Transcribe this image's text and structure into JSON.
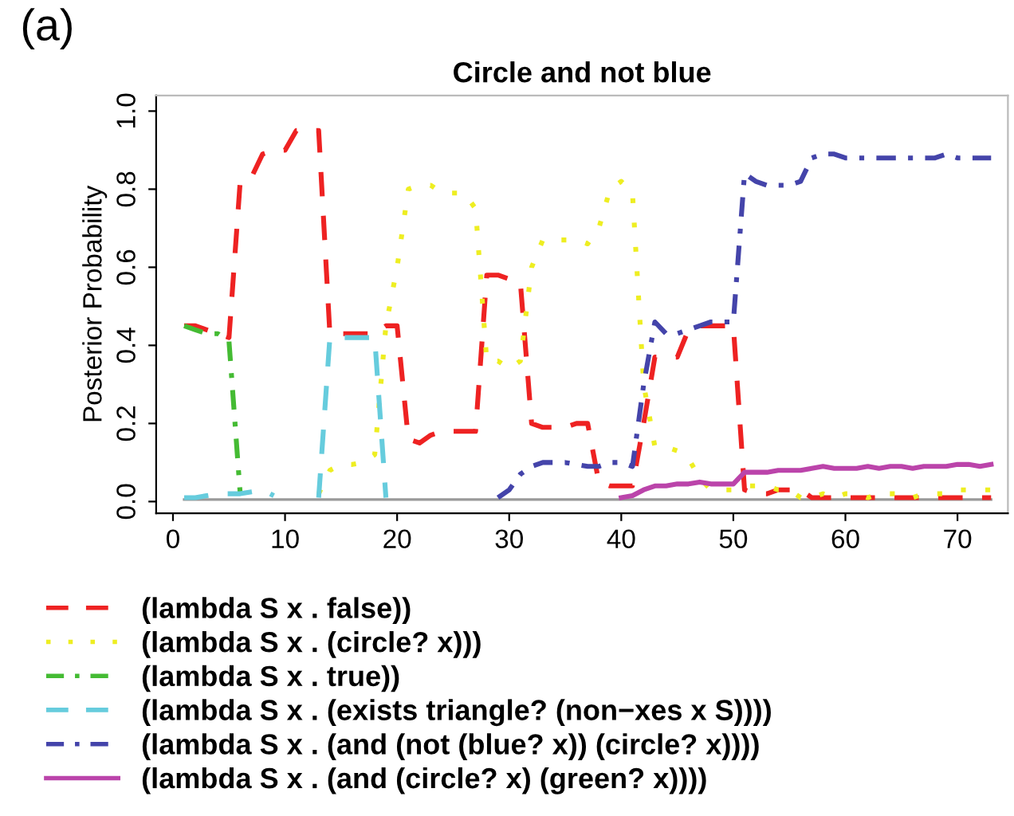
{
  "chart_data": {
    "type": "line",
    "title": "Circle and not blue",
    "ylabel": "Posterior Probability",
    "annotations": [
      "(a)"
    ],
    "x": [
      1,
      2,
      3,
      4,
      5,
      6,
      7,
      8,
      9,
      10,
      11,
      12,
      13,
      14,
      15,
      16,
      17,
      18,
      19,
      20,
      21,
      22,
      23,
      24,
      25,
      26,
      27,
      28,
      29,
      30,
      31,
      32,
      33,
      34,
      35,
      36,
      37,
      38,
      39,
      40,
      41,
      42,
      43,
      44,
      45,
      46,
      47,
      48,
      49,
      50,
      51,
      52,
      53,
      54,
      55,
      56,
      57,
      58,
      59,
      60,
      61,
      62,
      63,
      64,
      65,
      66,
      67,
      68,
      69,
      70,
      71,
      72,
      73
    ],
    "xlim": [
      -1.5,
      74.5
    ],
    "xticks": [
      0,
      10,
      20,
      30,
      40,
      50,
      60,
      70
    ],
    "ylim": [
      -0.03,
      1.04
    ],
    "yticks": [
      {
        "value": 0,
        "label": "0.0"
      },
      0.2,
      0.4,
      0.6,
      0.8,
      {
        "value": 1,
        "label": "1.0"
      }
    ],
    "grid": false,
    "legend": "bottom",
    "marker": "none",
    "series": [
      {
        "name": null,
        "color": "#999999",
        "line_style": "solid",
        "values": [
          0.005,
          0.005,
          0.005,
          0.005,
          0.005,
          0.005,
          0.005,
          0.005,
          0.005,
          0.005,
          0.005,
          0.005,
          0.005,
          0.005,
          0.005,
          0.005,
          0.005,
          0.005,
          0.005,
          0.005,
          0.005,
          0.005,
          0.005,
          0.005,
          0.005,
          0.005,
          0.005,
          0.005,
          0.005,
          0.005,
          0.005,
          0.005,
          0.005,
          0.005,
          0.005,
          0.005,
          0.005,
          0.005,
          0.005,
          0.005,
          0.005,
          0.005,
          0.005,
          0.005,
          0.005,
          0.005,
          0.005,
          0.005,
          0.005,
          0.005,
          0.005,
          0.005,
          0.005,
          0.005,
          0.005,
          0.005,
          0.005,
          0.005,
          0.005,
          0.005,
          0.005,
          0.005,
          0.005,
          0.005,
          0.005,
          0.005,
          0.005,
          0.005,
          0.005,
          0.005,
          0.005,
          0.005,
          0.005
        ]
      },
      {
        "name": "(lambda S x . false))",
        "color": "#ee2222",
        "line_style": "dashed",
        "values": [
          0.45,
          0.45,
          0.44,
          0.43,
          0.42,
          0.82,
          0.83,
          0.89,
          0.9,
          0.9,
          0.95,
          0.95,
          0.95,
          0.43,
          0.43,
          0.43,
          0.43,
          0.43,
          0.45,
          0.45,
          0.16,
          0.15,
          0.17,
          0.18,
          0.18,
          0.18,
          0.18,
          0.58,
          0.58,
          0.57,
          0.56,
          0.2,
          0.19,
          0.19,
          0.19,
          0.2,
          0.2,
          0.05,
          0.04,
          0.04,
          0.04,
          0.2,
          0.37,
          0.37,
          0.37,
          0.44,
          0.45,
          0.45,
          0.45,
          0.45,
          0.03,
          0.02,
          0.02,
          0.03,
          0.03,
          0.03,
          0.01,
          0.01,
          0.01,
          0.01,
          0.01,
          0.01,
          0.01,
          0.01,
          0.01,
          0.01,
          0.01,
          0.01,
          0.01,
          0.01,
          0.01,
          0.01,
          0.01
        ]
      },
      {
        "name": "(lambda S x . (circle? x)))",
        "color": "#eeee22",
        "line_style": "dotted",
        "values": [
          null,
          null,
          null,
          null,
          null,
          null,
          null,
          null,
          null,
          null,
          null,
          null,
          0.02,
          0.08,
          0.095,
          0.095,
          0.1,
          0.12,
          0.45,
          0.6,
          0.8,
          0.81,
          0.81,
          0.79,
          0.79,
          0.79,
          0.75,
          0.36,
          0.36,
          0.34,
          0.36,
          0.6,
          0.67,
          0.67,
          0.67,
          0.67,
          0.66,
          0.7,
          0.8,
          0.82,
          0.79,
          0.3,
          0.14,
          0.14,
          0.13,
          0.11,
          0.06,
          0.03,
          0.03,
          0.03,
          0.04,
          0.04,
          0.04,
          0.03,
          0.03,
          0.01,
          0.01,
          0.02,
          0.01,
          0.02,
          0.02,
          0.01,
          0.02,
          0.02,
          0.02,
          0.01,
          0.02,
          0.02,
          0.02,
          0.03,
          0.03,
          0.03,
          0.03
        ]
      },
      {
        "name": "(lambda S x . true))",
        "color": "#44bb33",
        "line_style": "dashdot",
        "values": [
          0.45,
          0.44,
          0.43,
          0.43,
          0.41,
          0.02,
          null,
          null,
          null,
          null,
          null,
          null,
          null,
          null,
          null,
          null,
          null,
          null,
          null,
          null,
          null,
          null,
          null,
          null,
          null,
          null,
          null,
          null,
          null,
          null,
          null,
          null,
          null,
          null,
          null,
          null,
          null,
          null,
          null,
          null,
          null,
          null,
          null,
          null,
          null,
          null,
          null,
          null,
          null,
          null,
          null,
          null,
          null,
          null,
          null,
          null,
          null,
          null,
          null,
          null,
          null,
          null,
          null,
          null,
          null,
          null,
          null,
          null,
          null,
          null,
          null,
          null,
          null
        ]
      },
      {
        "name": "(lambda S x . (exists triangle? (non−xes x S))))",
        "color": "#66ccdd",
        "line_style": "dashed",
        "values": [
          0.01,
          0.01,
          0.015,
          0.02,
          0.02,
          0.02,
          0.025,
          0.03,
          0.015,
          null,
          null,
          null,
          0.01,
          0.42,
          0.42,
          0.42,
          0.42,
          0.42,
          0.01,
          null,
          null,
          null,
          null,
          null,
          null,
          null,
          null,
          null,
          null,
          null,
          null,
          null,
          null,
          null,
          null,
          null,
          null,
          null,
          null,
          null,
          null,
          null,
          null,
          null,
          null,
          null,
          null,
          null,
          null,
          null,
          null,
          null,
          null,
          null,
          null,
          null,
          null,
          null,
          null,
          null,
          null,
          null,
          null,
          null,
          null,
          null,
          null,
          null,
          null,
          null,
          null,
          null,
          null
        ]
      },
      {
        "name": "(lambda S x . (and (not (blue? x)) (circle? x))))",
        "color": "#4444aa",
        "line_style": "dashdot",
        "values": [
          null,
          null,
          null,
          null,
          null,
          null,
          null,
          null,
          null,
          null,
          null,
          null,
          null,
          null,
          null,
          null,
          null,
          null,
          null,
          null,
          null,
          null,
          null,
          null,
          null,
          null,
          null,
          null,
          0.01,
          0.03,
          0.07,
          0.09,
          0.1,
          0.1,
          0.1,
          0.095,
          0.09,
          0.09,
          0.1,
          0.1,
          0.09,
          0.3,
          0.46,
          0.43,
          0.43,
          0.44,
          0.45,
          0.46,
          0.46,
          0.46,
          0.84,
          0.82,
          0.81,
          0.81,
          0.81,
          0.82,
          0.88,
          0.89,
          0.89,
          0.88,
          0.88,
          0.88,
          0.88,
          0.88,
          0.88,
          0.88,
          0.88,
          0.88,
          0.89,
          0.88,
          0.88,
          0.88,
          0.88
        ]
      },
      {
        "name": "(lambda S x . (and (circle? x) (green? x))))",
        "color": "#bb44aa",
        "line_style": "solid",
        "values": [
          null,
          null,
          null,
          null,
          null,
          null,
          null,
          null,
          null,
          null,
          null,
          null,
          null,
          null,
          null,
          null,
          null,
          null,
          null,
          null,
          null,
          null,
          null,
          null,
          null,
          null,
          null,
          null,
          null,
          null,
          null,
          null,
          null,
          null,
          null,
          null,
          null,
          null,
          null,
          0.01,
          0.015,
          0.03,
          0.04,
          0.04,
          0.045,
          0.045,
          0.05,
          0.045,
          0.045,
          0.045,
          0.075,
          0.075,
          0.075,
          0.08,
          0.08,
          0.08,
          0.085,
          0.09,
          0.085,
          0.085,
          0.085,
          0.09,
          0.085,
          0.09,
          0.09,
          0.085,
          0.09,
          0.09,
          0.09,
          0.095,
          0.095,
          0.09,
          0.095
        ]
      }
    ]
  }
}
